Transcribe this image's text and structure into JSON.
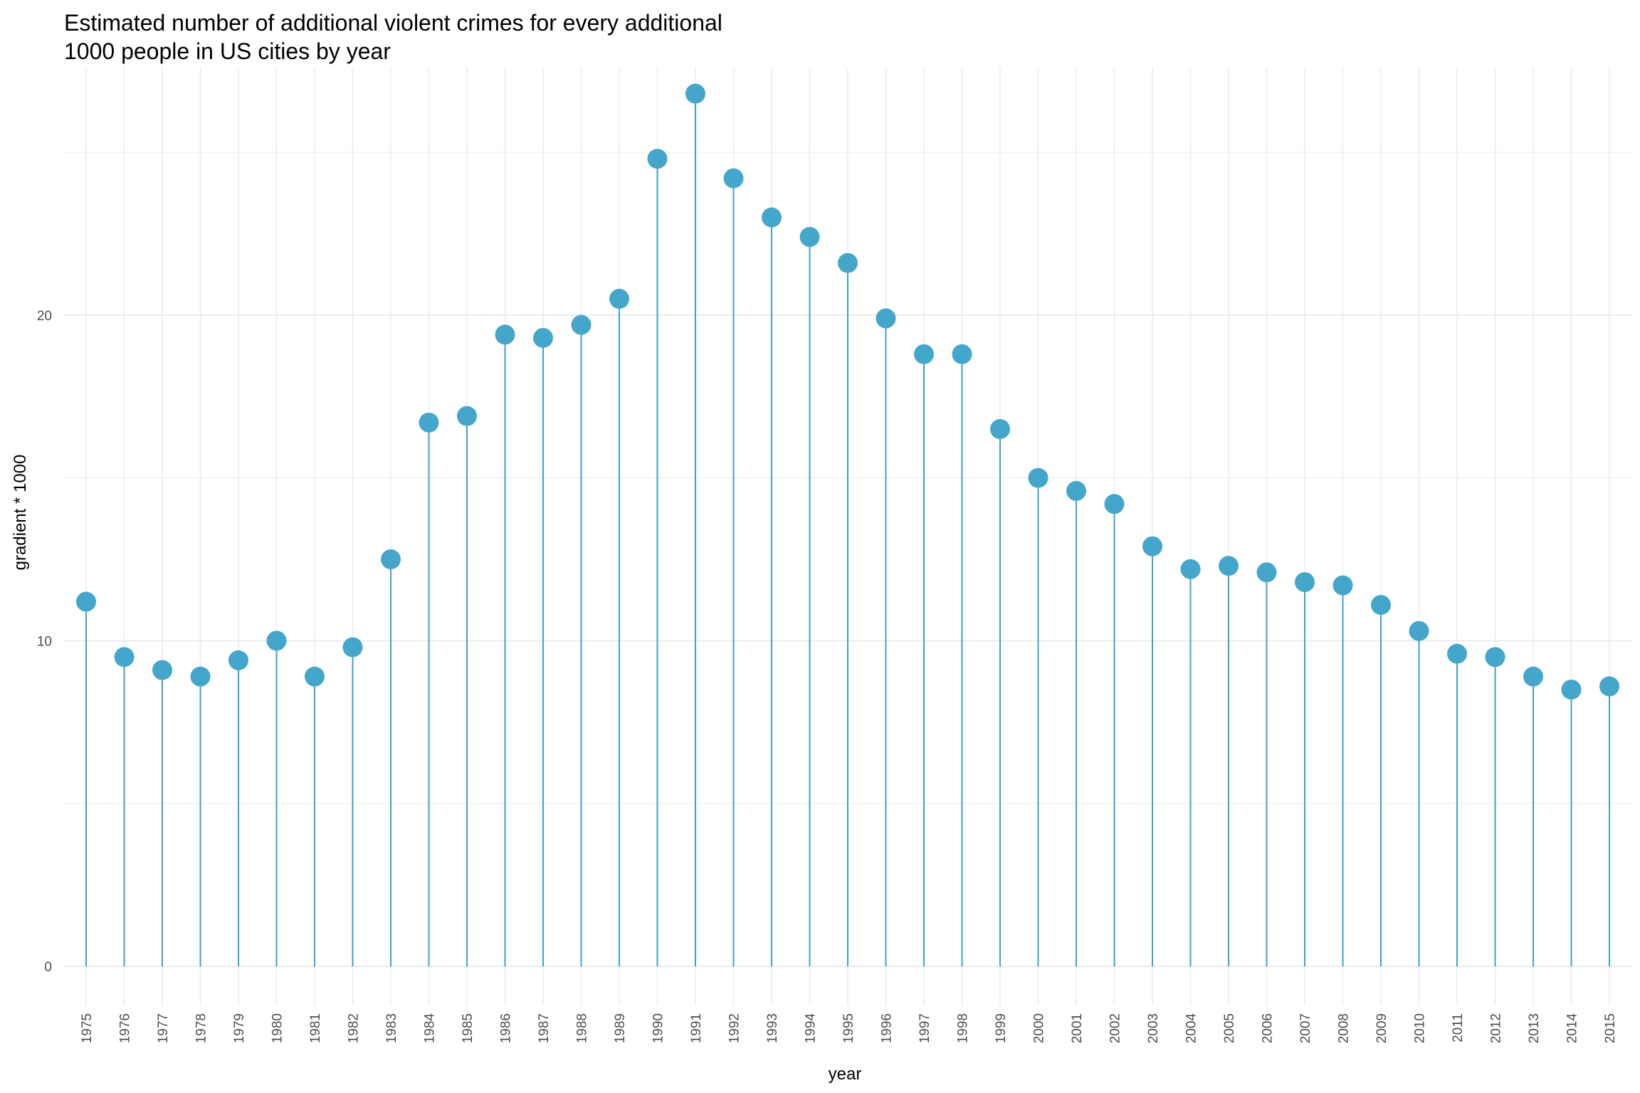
{
  "chart_data": {
    "type": "lollipop",
    "title_lines": [
      "Estimated number of additional violent crimes for every additional",
      "1000 people in US cities by year"
    ],
    "xlabel": "year",
    "ylabel": "gradient * 1000",
    "ylim": [
      -1.2,
      27.6
    ],
    "yticks": [
      0,
      10,
      20
    ],
    "grid": true,
    "point_color": "#45A6CC",
    "stem_color": "#3FA0C8",
    "grid_color": "#EBEBEB",
    "x": [
      "1975",
      "1976",
      "1977",
      "1978",
      "1979",
      "1980",
      "1981",
      "1982",
      "1983",
      "1984",
      "1985",
      "1986",
      "1987",
      "1988",
      "1989",
      "1990",
      "1991",
      "1992",
      "1993",
      "1994",
      "1995",
      "1996",
      "1997",
      "1998",
      "1999",
      "2000",
      "2001",
      "2002",
      "2003",
      "2004",
      "2005",
      "2006",
      "2007",
      "2008",
      "2009",
      "2010",
      "2011",
      "2012",
      "2013",
      "2014",
      "2015"
    ],
    "values": [
      11.2,
      9.5,
      9.1,
      8.9,
      9.4,
      10.0,
      8.9,
      9.8,
      12.5,
      16.7,
      16.9,
      19.4,
      19.3,
      19.7,
      20.5,
      24.8,
      26.8,
      24.2,
      23.0,
      22.4,
      21.6,
      19.9,
      18.8,
      18.8,
      16.5,
      15.0,
      14.6,
      14.2,
      12.9,
      12.2,
      12.3,
      12.1,
      11.8,
      11.7,
      11.1,
      10.3,
      9.6,
      9.5,
      8.9,
      8.5,
      8.6
    ]
  }
}
